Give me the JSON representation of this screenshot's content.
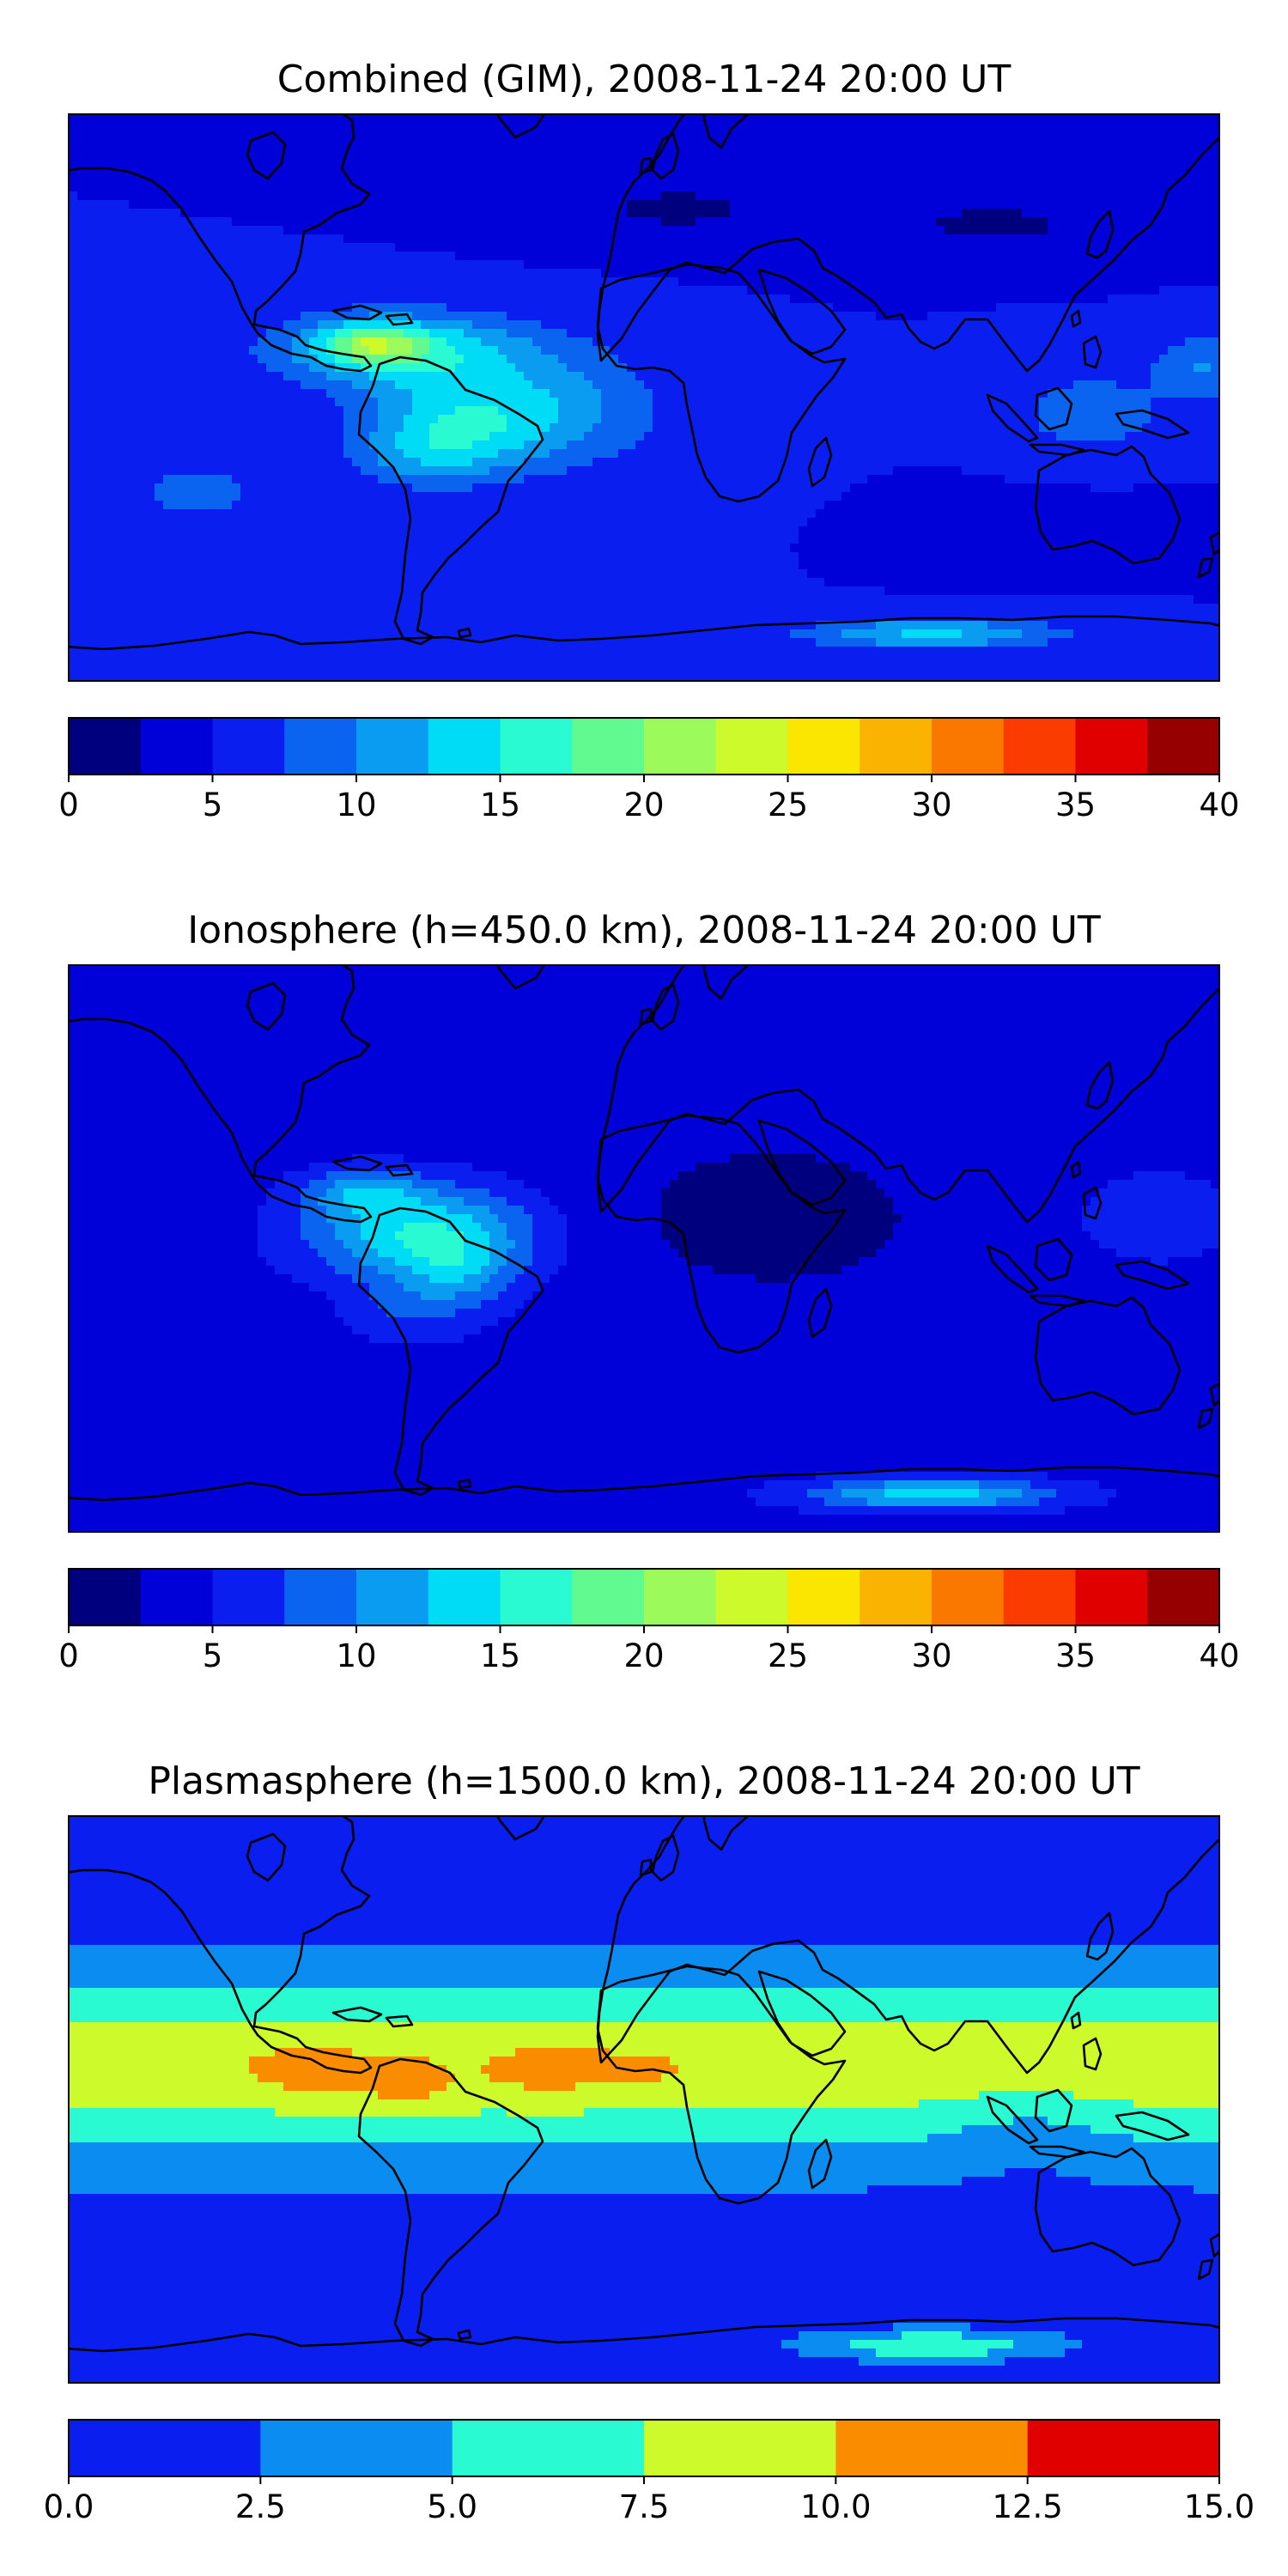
{
  "chart_data": [
    {
      "type": "heatmap",
      "title": "Combined (GIM), 2008-11-24 20:00 UT",
      "colorbar": {
        "levels": [
          0,
          2.5,
          5,
          7.5,
          10,
          12.5,
          15,
          17.5,
          20,
          22.5,
          25,
          27.5,
          30,
          32.5,
          35,
          37.5,
          40
        ],
        "colors": [
          "#00007f",
          "#0000d9",
          "#0a1ef0",
          "#0a64f0",
          "#0a9cf0",
          "#00dcf5",
          "#2afad2",
          "#60fa90",
          "#9cfa5a",
          "#cdfa2a",
          "#fae600",
          "#fab400",
          "#fa7800",
          "#fa3c00",
          "#e00000",
          "#960000"
        ],
        "tick_values": [
          0,
          5,
          10,
          15,
          20,
          25,
          30,
          35,
          40
        ],
        "tick_labels": [
          "0",
          "5",
          "10",
          "15",
          "20",
          "25",
          "30",
          "35",
          "40"
        ]
      },
      "field": {
        "base": 5.0,
        "blobs": [
          [
            -75,
            15,
            40,
            12,
            10
          ],
          [
            -55,
            -8,
            30,
            16,
            9
          ],
          [
            -85,
            17,
            15,
            6,
            9
          ],
          [
            -70,
            -18,
            22,
            10,
            4
          ],
          [
            -20,
            -2,
            28,
            18,
            4
          ],
          [
            140,
            -5,
            25,
            14,
            4
          ],
          [
            175,
            10,
            15,
            10,
            5
          ],
          [
            10,
            60,
            40,
            10,
            -3
          ],
          [
            110,
            55,
            40,
            10,
            -3
          ],
          [
            120,
            -40,
            50,
            10,
            -1
          ],
          [
            90,
            -75,
            40,
            5,
            8
          ],
          [
            20,
            -20,
            30,
            20,
            1
          ],
          [
            -140,
            -30,
            30,
            15,
            3
          ]
        ]
      }
    },
    {
      "type": "heatmap",
      "title": "Ionosphere  (h=450.0 km), 2008-11-24 20:00 UT",
      "colorbar": {
        "levels": [
          0,
          2.5,
          5,
          7.5,
          10,
          12.5,
          15,
          17.5,
          20,
          22.5,
          25,
          27.5,
          30,
          32.5,
          35,
          37.5,
          40
        ],
        "colors": [
          "#00007f",
          "#0000d9",
          "#0a1ef0",
          "#0a64f0",
          "#0a9cf0",
          "#00dcf5",
          "#2afad2",
          "#60fa90",
          "#9cfa5a",
          "#cdfa2a",
          "#fae600",
          "#fab400",
          "#fa7800",
          "#fa3c00",
          "#e00000",
          "#960000"
        ],
        "tick_values": [
          0,
          5,
          10,
          15,
          20,
          25,
          30,
          35,
          40
        ],
        "tick_labels": [
          "0",
          "5",
          "10",
          "15",
          "20",
          "25",
          "30",
          "35",
          "40"
        ]
      },
      "field": {
        "base": 3.8,
        "blobs": [
          [
            -70,
            5,
            35,
            15,
            11
          ],
          [
            -88,
            18,
            18,
            7,
            6
          ],
          [
            -58,
            -8,
            18,
            12,
            5
          ],
          [
            -75,
            -20,
            18,
            10,
            3
          ],
          [
            40,
            10,
            60,
            30,
            -2
          ],
          [
            90,
            -78,
            40,
            5,
            10
          ],
          [
            160,
            10,
            25,
            15,
            3
          ],
          [
            -120,
            60,
            40,
            15,
            1
          ],
          [
            -30,
            -40,
            40,
            15,
            1
          ]
        ]
      }
    },
    {
      "type": "heatmap",
      "title": "Plasmasphere (h=1500.0 km), 2008-11-24 20:00 UT",
      "colorbar": {
        "levels": [
          0,
          2.5,
          5,
          7.5,
          10,
          12.5,
          15
        ],
        "colors": [
          "#0a1ef0",
          "#0a8cf0",
          "#2afad2",
          "#cdfa2a",
          "#fa8c00",
          "#e00000"
        ],
        "tick_values": [
          0,
          2.5,
          5,
          7.5,
          10,
          12.5,
          15
        ],
        "tick_labels": [
          "0.0",
          "2.5",
          "5.0",
          "7.5",
          "10.0",
          "12.5",
          "15.0"
        ]
      },
      "field": {
        "band": {
          "lat0": 10,
          "sigma": 30,
          "amp": 8.0,
          "floor": 1.0
        },
        "blobs": [
          [
            -105,
            10,
            20,
            8,
            2.5
          ],
          [
            -75,
            5,
            15,
            8,
            2.5
          ],
          [
            -30,
            10,
            20,
            8,
            2.5
          ],
          [
            0,
            10,
            15,
            7,
            1.5
          ],
          [
            120,
            -10,
            30,
            15,
            -2
          ],
          [
            90,
            -78,
            40,
            5,
            6
          ]
        ]
      }
    }
  ]
}
